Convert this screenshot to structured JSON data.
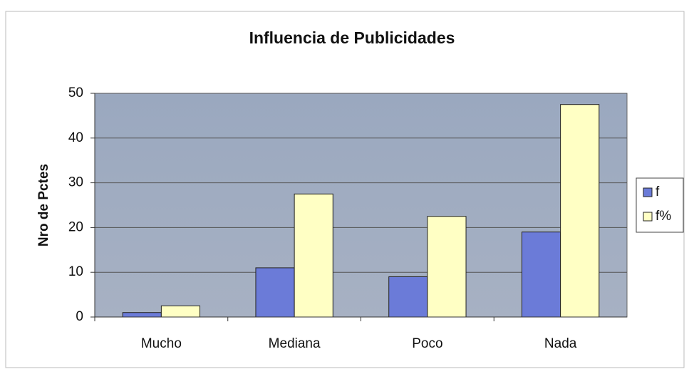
{
  "chart_data": {
    "type": "bar",
    "title": "Influencia de Publicidades",
    "y_label": "Nro de Pctes",
    "categories": [
      "Mucho",
      "Mediana",
      "Poco",
      "Nada"
    ],
    "series": [
      {
        "name": "f",
        "color": "#6b7bd8",
        "values": [
          1,
          11,
          9,
          19
        ]
      },
      {
        "name": "f%",
        "color": "#ffffc4",
        "values": [
          2.5,
          27.5,
          22.5,
          47.5
        ]
      }
    ],
    "ylim": [
      0,
      50
    ],
    "yticks": [
      0,
      10,
      20,
      30,
      40,
      50
    ],
    "grid": true,
    "legend": "right"
  }
}
